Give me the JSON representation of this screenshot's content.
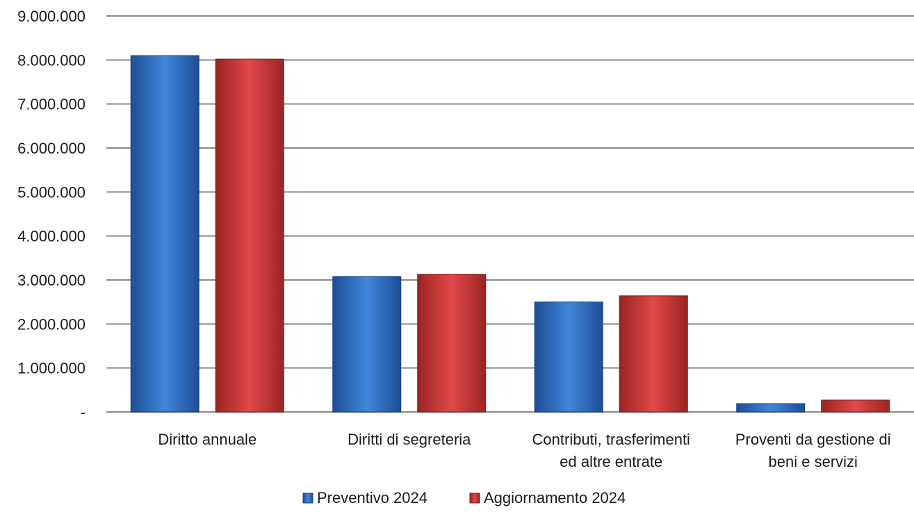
{
  "chart_data": {
    "type": "bar",
    "categories": [
      [
        "Diritto annuale"
      ],
      [
        "Diritti di segreteria"
      ],
      [
        "Contributi, trasferimenti",
        "ed altre entrate"
      ],
      [
        "Proventi da gestione di",
        "beni e servizi"
      ]
    ],
    "series": [
      {
        "name": "Preventivo 2024",
        "color": "#2E6FC6",
        "values": [
          8100000,
          3080000,
          2500000,
          190000
        ]
      },
      {
        "name": "Aggiornamento 2024",
        "color": "#D03A3A",
        "values": [
          8020000,
          3130000,
          2640000,
          270000
        ]
      }
    ],
    "ylim": [
      0,
      9000000
    ],
    "yticks": [
      0,
      1000000,
      2000000,
      3000000,
      4000000,
      5000000,
      6000000,
      7000000,
      8000000,
      9000000
    ],
    "ytick_labels": [
      "-",
      "1.000.000",
      "2.000.000",
      "3.000.000",
      "4.000.000",
      "5.000.000",
      "6.000.000",
      "7.000.000",
      "8.000.000",
      "9.000.000"
    ],
    "grid": true,
    "legend_position": "bottom-center",
    "title": "",
    "xlabel": "",
    "ylabel": ""
  }
}
